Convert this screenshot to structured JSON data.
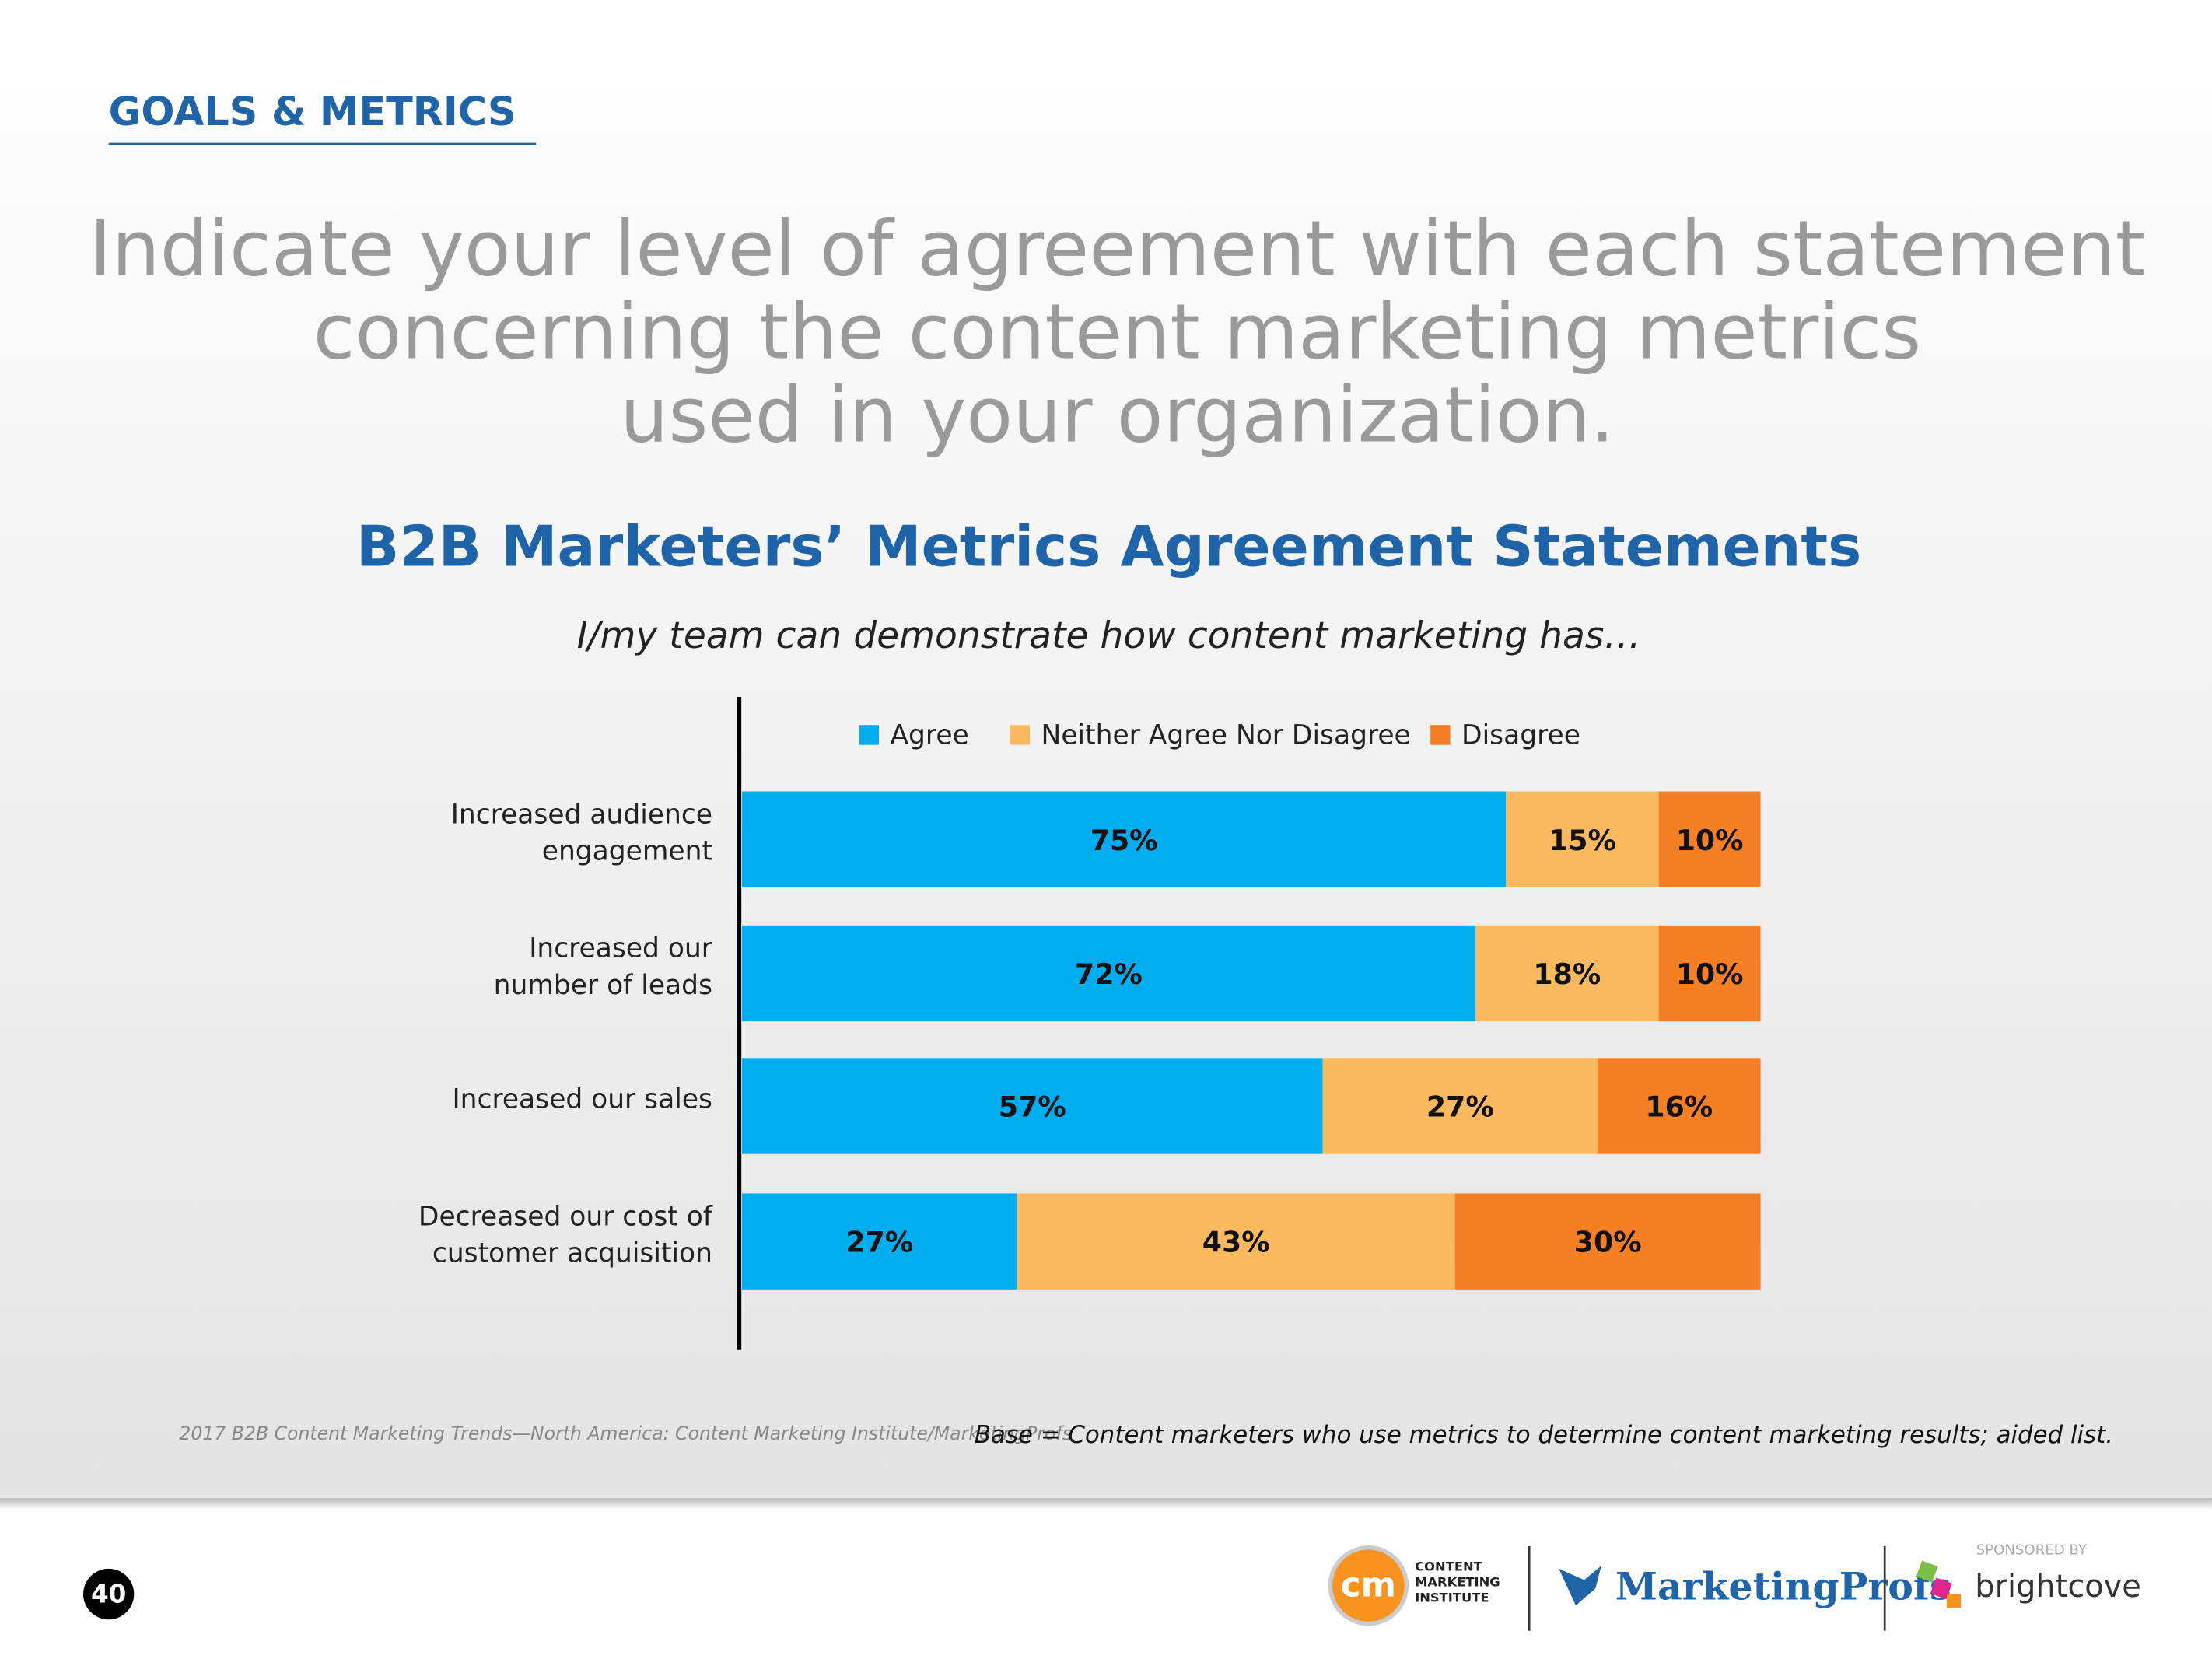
{
  "header": {
    "section": "GOALS & METRICS",
    "question": [
      "Indicate your level of agreement with each statement",
      "concerning the content marketing metrics",
      "used in your organization."
    ]
  },
  "chart_data": {
    "type": "stacked-bar-horizontal",
    "title": "B2B Marketers’ Metrics Agreement Statements",
    "subtitle": "I/my team can demonstrate how content marketing has…",
    "categories": [
      "Increased audience\nengagement",
      "Increased our\nnumber of leads",
      "Increased our sales",
      "Decreased our cost of\ncustomer acquisition"
    ],
    "xlim": [
      0,
      100
    ],
    "legend": "top",
    "series": [
      {
        "name": "Agree",
        "color": "#00adef",
        "values": [
          75,
          72,
          57,
          27
        ],
        "value_labels": [
          "75%",
          "72%",
          "57%",
          "27%"
        ]
      },
      {
        "name": "Neither Agree Nor Disagree",
        "color": "#fbb95f",
        "values": [
          15,
          18,
          27,
          43
        ],
        "value_labels": [
          "15%",
          "18%",
          "27%",
          "43%"
        ]
      },
      {
        "name": "Disagree",
        "color": "#f47f24",
        "values": [
          10,
          10,
          16,
          30
        ],
        "value_labels": [
          "10%",
          "10%",
          "16%",
          "30%"
        ]
      }
    ]
  },
  "footer": {
    "source": "2017 B2B Content Marketing Trends—North America: Content Marketing Institute/MarketingProfs",
    "base": "Base = Content marketers who use metrics to determine content marketing results; aided list.",
    "page_number": "40",
    "cmi_mark": "cm",
    "cmi_name": [
      "CONTENT",
      "MARKETING",
      "INSTITUTE"
    ],
    "marketingprofs": "MarketingProfs",
    "sponsored_by": "SPONSORED BY",
    "brightcove": "brightcove"
  }
}
